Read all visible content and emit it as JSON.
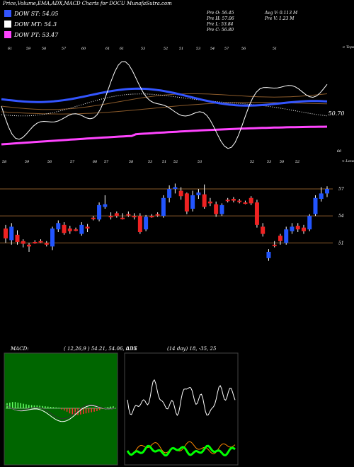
{
  "header": {
    "title": "Price,Volume,EMA,ADX,MACD Charts for DOCU MunafaSutra.com"
  },
  "legend": [
    {
      "label": "DOW ST: 54.05",
      "color": "#3355ff"
    },
    {
      "label": "DOW MT: 54.3",
      "color": "#ffffff"
    },
    {
      "label": "DOW PT: 53.47",
      "color": "#ff44ff"
    }
  ],
  "ohlc": {
    "col1": [
      "Pre  O: 56.45",
      "Pre  H: 57.06",
      "Pre  L: 53.84",
      "Pre  C: 56.80"
    ],
    "col2": [
      "Avg V: 0.113 M",
      "Pre  V: 1.23 M"
    ]
  },
  "indicator_panel": {
    "corner_label": "< Tops",
    "price_label": "50.70",
    "price_label2": "60",
    "tops": [
      "61",
      "59",
      "58",
      "57",
      "60",
      "61",
      "61",
      "53",
      "52",
      "51",
      "53",
      "54",
      "57",
      "56",
      "51"
    ]
  },
  "price_panel": {
    "corner_label": "< Lows",
    "y_labels": [
      "57",
      "54",
      "51"
    ],
    "lows": [
      "58",
      "59",
      "56",
      "57",
      "60",
      "57",
      "58",
      "53",
      "51",
      "52",
      "53",
      "52",
      "53",
      "50",
      "52"
    ]
  },
  "macd": {
    "label": "MACD:",
    "params": "( 12,26,9 ) 54.21, 54.06, 0.15"
  },
  "adx": {
    "label": "ADX",
    "params": "(14 day) 18, -35, 25"
  },
  "chart_data": [
    {
      "type": "line",
      "name": "EMA indicator panel",
      "series": [
        {
          "name": "DOW ST",
          "color": "#3355ff"
        },
        {
          "name": "DOW MT",
          "color": "#ffffff"
        },
        {
          "name": "DOW PT",
          "color": "#ff44ff"
        }
      ]
    },
    {
      "type": "candlestick",
      "ylim": [
        48.5,
        58.5
      ],
      "hlines": [
        57,
        54,
        51
      ],
      "candles": [
        {
          "o": 51.5,
          "c": 52.6,
          "h": 53.0,
          "l": 51.0,
          "d": "down"
        },
        {
          "o": 52.8,
          "c": 51.3,
          "h": 53.2,
          "l": 50.8,
          "d": "up"
        },
        {
          "o": 51.9,
          "c": 51.1,
          "h": 52.4,
          "l": 50.8,
          "d": "down"
        },
        {
          "o": 51.2,
          "c": 50.9,
          "h": 51.4,
          "l": 50.5,
          "d": "down"
        },
        {
          "o": 50.8,
          "c": 50.6,
          "h": 51.0,
          "l": 50.0,
          "d": "down"
        },
        {
          "o": 51.1,
          "c": 51.0,
          "h": 51.3,
          "l": 50.9,
          "d": "down"
        },
        {
          "o": 51.2,
          "c": 51.1,
          "h": 51.4,
          "l": 51.0,
          "d": "down"
        },
        {
          "o": 50.8,
          "c": 51.0,
          "h": 51.2,
          "l": 50.6,
          "d": "down"
        },
        {
          "o": 50.6,
          "c": 52.6,
          "h": 52.8,
          "l": 50.2,
          "d": "up"
        },
        {
          "o": 52.5,
          "c": 53.2,
          "h": 53.5,
          "l": 52.2,
          "d": "up"
        },
        {
          "o": 53.0,
          "c": 52.1,
          "h": 53.3,
          "l": 51.9,
          "d": "down"
        },
        {
          "o": 52.6,
          "c": 52.3,
          "h": 52.9,
          "l": 52.0,
          "d": "down"
        },
        {
          "o": 52.5,
          "c": 52.4,
          "h": 52.7,
          "l": 52.3,
          "d": "down"
        },
        {
          "o": 52.0,
          "c": 53.0,
          "h": 53.3,
          "l": 51.8,
          "d": "up"
        },
        {
          "o": 52.8,
          "c": 52.6,
          "h": 53.1,
          "l": 52.2,
          "d": "down"
        },
        {
          "o": 53.8,
          "c": 53.7,
          "h": 54.0,
          "l": 53.5,
          "d": "down"
        },
        {
          "o": 53.6,
          "c": 55.2,
          "h": 55.5,
          "l": 53.4,
          "d": "up"
        },
        {
          "o": 55.0,
          "c": 55.3,
          "h": 56.3,
          "l": 54.8,
          "d": "up"
        },
        {
          "o": 54.0,
          "c": 53.9,
          "h": 54.4,
          "l": 53.6,
          "d": "down"
        },
        {
          "o": 54.3,
          "c": 54.0,
          "h": 54.5,
          "l": 53.8,
          "d": "down"
        },
        {
          "o": 53.8,
          "c": 53.8,
          "h": 54.3,
          "l": 53.6,
          "d": "down"
        },
        {
          "o": 54.2,
          "c": 54.1,
          "h": 54.5,
          "l": 53.9,
          "d": "down"
        },
        {
          "o": 54.0,
          "c": 53.9,
          "h": 54.3,
          "l": 53.6,
          "d": "down"
        },
        {
          "o": 54.0,
          "c": 52.2,
          "h": 54.3,
          "l": 52.0,
          "d": "down"
        },
        {
          "o": 52.5,
          "c": 53.9,
          "h": 54.1,
          "l": 52.3,
          "d": "up"
        },
        {
          "o": 54.0,
          "c": 54.0,
          "h": 54.2,
          "l": 53.8,
          "d": "down"
        },
        {
          "o": 54.2,
          "c": 54.1,
          "h": 54.4,
          "l": 53.9,
          "d": "down"
        },
        {
          "o": 54.0,
          "c": 56.0,
          "h": 56.3,
          "l": 53.8,
          "d": "up"
        },
        {
          "o": 56.0,
          "c": 57.0,
          "h": 57.4,
          "l": 55.5,
          "d": "up"
        },
        {
          "o": 57.0,
          "c": 57.2,
          "h": 57.6,
          "l": 56.5,
          "d": "up"
        },
        {
          "o": 56.8,
          "c": 56.2,
          "h": 57.2,
          "l": 55.8,
          "d": "down"
        },
        {
          "o": 56.5,
          "c": 54.5,
          "h": 56.6,
          "l": 54.2,
          "d": "down"
        },
        {
          "o": 54.8,
          "c": 56.3,
          "h": 56.8,
          "l": 54.5,
          "d": "up"
        },
        {
          "o": 56.3,
          "c": 56.6,
          "h": 57.0,
          "l": 55.9,
          "d": "up"
        },
        {
          "o": 56.4,
          "c": 55.0,
          "h": 57.5,
          "l": 54.8,
          "d": "down"
        },
        {
          "o": 55.6,
          "c": 55.4,
          "h": 56.0,
          "l": 55.1,
          "d": "down"
        },
        {
          "o": 55.3,
          "c": 54.2,
          "h": 55.6,
          "l": 53.9,
          "d": "down"
        },
        {
          "o": 54.2,
          "c": 55.2,
          "h": 55.4,
          "l": 54.0,
          "d": "up"
        },
        {
          "o": 55.8,
          "c": 55.7,
          "h": 56.0,
          "l": 55.5,
          "d": "down"
        },
        {
          "o": 55.9,
          "c": 55.7,
          "h": 56.1,
          "l": 55.5,
          "d": "down"
        },
        {
          "o": 55.7,
          "c": 55.7,
          "h": 55.9,
          "l": 55.4,
          "d": "down"
        },
        {
          "o": 55.5,
          "c": 55.5,
          "h": 55.7,
          "l": 55.3,
          "d": "down"
        },
        {
          "o": 56.0,
          "c": 55.4,
          "h": 56.2,
          "l": 55.2,
          "d": "down"
        },
        {
          "o": 55.5,
          "c": 53.0,
          "h": 55.8,
          "l": 52.7,
          "d": "down"
        },
        {
          "o": 52.8,
          "c": 52.0,
          "h": 53.2,
          "l": 51.7,
          "d": "down"
        },
        {
          "o": 50.0,
          "c": 49.3,
          "h": 50.3,
          "l": 49.0,
          "d": "up"
        },
        {
          "o": 50.8,
          "c": 50.8,
          "h": 51.2,
          "l": 50.5,
          "d": "down"
        },
        {
          "o": 51.2,
          "c": 51.8,
          "h": 52.0,
          "l": 50.8,
          "d": "down"
        },
        {
          "o": 51.0,
          "c": 52.5,
          "h": 52.8,
          "l": 50.8,
          "d": "up"
        },
        {
          "o": 52.3,
          "c": 52.8,
          "h": 53.2,
          "l": 52.0,
          "d": "up"
        },
        {
          "o": 52.9,
          "c": 52.5,
          "h": 53.2,
          "l": 52.2,
          "d": "down"
        },
        {
          "o": 52.3,
          "c": 52.7,
          "h": 53.0,
          "l": 52.0,
          "d": "down"
        },
        {
          "o": 52.5,
          "c": 54.0,
          "h": 54.2,
          "l": 52.3,
          "d": "up"
        },
        {
          "o": 54.2,
          "c": 56.0,
          "h": 56.3,
          "l": 54.0,
          "d": "up"
        },
        {
          "o": 55.9,
          "c": 56.5,
          "h": 57.2,
          "l": 55.6,
          "d": "up"
        },
        {
          "o": 56.5,
          "c": 57.0,
          "h": 57.3,
          "l": 56.1,
          "d": "up"
        }
      ]
    },
    {
      "type": "bar",
      "name": "MACD histogram",
      "values": [
        0.9,
        1.0,
        1.1,
        1.1,
        1.0,
        0.9,
        0.8,
        0.7,
        0.6,
        0.55,
        0.5,
        0.5,
        0.45,
        0.4,
        0.35,
        0.3,
        0.25,
        0.2,
        0.15,
        0.1,
        -0.2,
        -0.4,
        -0.6,
        -0.9,
        -1.1,
        -1.2,
        -1.2,
        -1.1,
        -1.0,
        -0.9,
        -0.8,
        -0.7,
        -0.6,
        -0.5,
        -0.3,
        -0.1,
        0.1,
        0.2,
        0.3,
        0.35
      ]
    },
    {
      "type": "line",
      "name": "ADX",
      "series": [
        {
          "name": "ADX",
          "color": "#ffffff"
        },
        {
          "name": "+DI",
          "color": "#00ff00"
        },
        {
          "name": "-DI",
          "color": "#ff8800"
        }
      ]
    }
  ]
}
